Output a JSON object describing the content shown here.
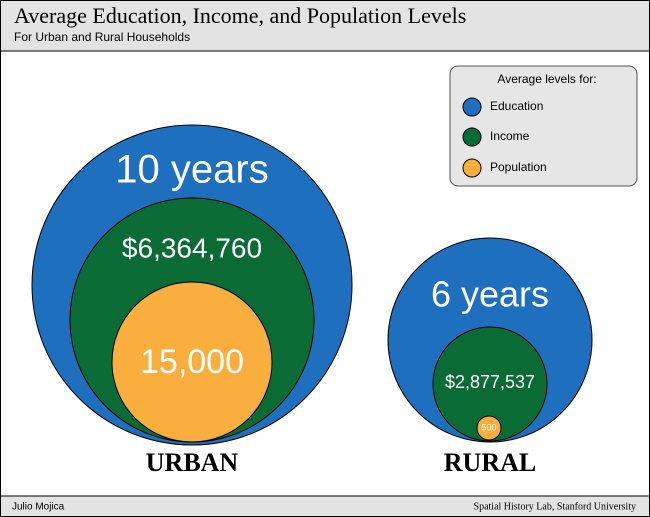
{
  "header": {
    "title": "Average Education, Income, and Population Levels",
    "subtitle": "For Urban and Rural Households"
  },
  "legend": {
    "title": "Average levels for:",
    "items": [
      "Education",
      "Income",
      "Population"
    ]
  },
  "groups": [
    {
      "label": "URBAN",
      "education": "10 years",
      "income": "$6,364,760",
      "population": "15,000"
    },
    {
      "label": "RURAL",
      "education": "6 years",
      "income": "$2,877,537",
      "population": "500"
    }
  ],
  "footer": {
    "left": "Julio Mojica",
    "right": "Spatial History Lab, Stanford University"
  }
}
